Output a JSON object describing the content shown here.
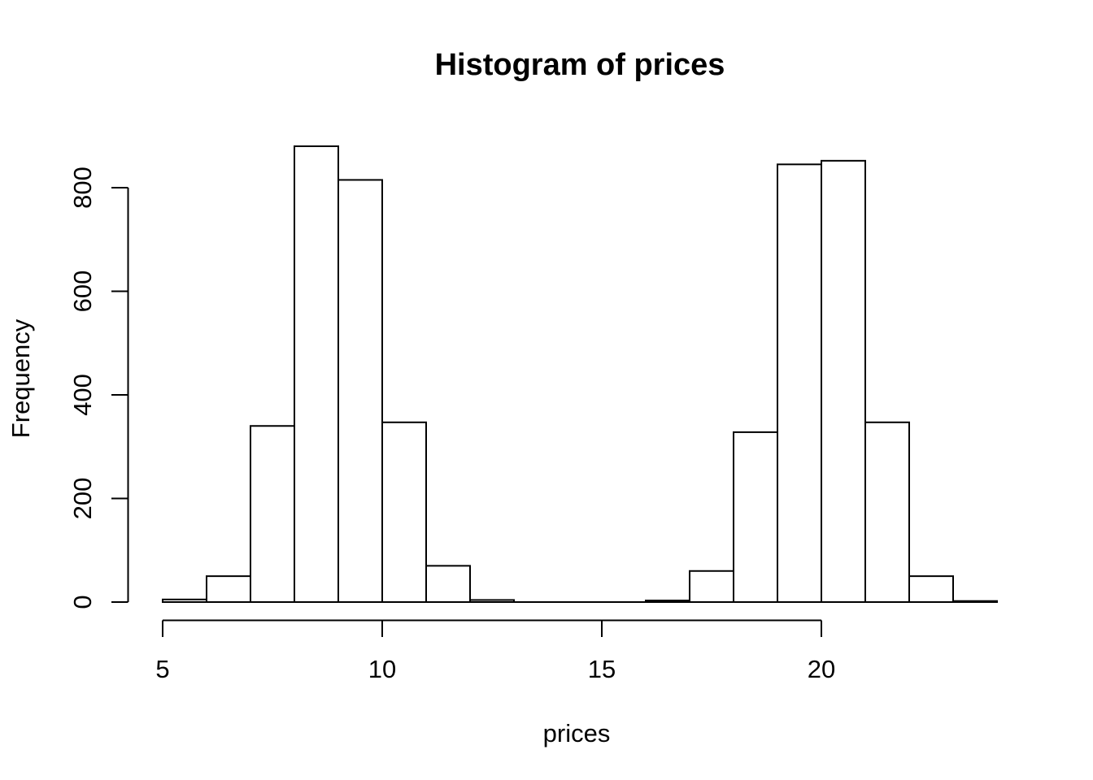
{
  "figure": {
    "background_color": "#ffffff",
    "line_color": "#000000"
  },
  "chart_data": {
    "type": "bar",
    "subtype": "histogram",
    "title": "Histogram of prices",
    "xlabel": "prices",
    "ylabel": "Frequency",
    "bin_breaks": [
      5,
      6,
      7,
      8,
      9,
      10,
      11,
      12,
      13,
      14,
      15,
      16,
      17,
      18,
      19,
      20,
      21,
      22,
      23,
      24
    ],
    "counts": [
      5,
      50,
      340,
      880,
      815,
      347,
      70,
      4,
      0,
      0,
      0,
      3,
      60,
      328,
      845,
      852,
      347,
      50,
      2
    ],
    "x_ticks": [
      5,
      10,
      15,
      20
    ],
    "y_ticks": [
      0,
      200,
      400,
      600,
      800
    ],
    "xlim": [
      5,
      24
    ],
    "ylim": [
      0,
      880
    ],
    "grid": "off",
    "legend": "none",
    "bar_fill": "#ffffff",
    "bar_stroke": "#000000",
    "background": "#ffffff"
  }
}
